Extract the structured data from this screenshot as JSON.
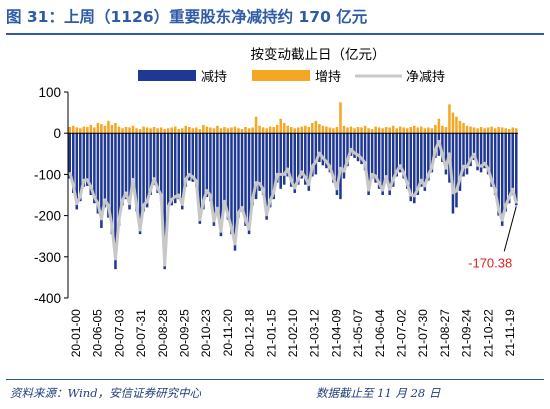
{
  "figure": {
    "title": "图 31：上周（1126）重要股东净减持约 170 亿元",
    "source": "资料来源：Wind，安信证券研究中心",
    "cutoff": "数据截止至 11 月 28 日"
  },
  "colors": {
    "title": "#2e5aa8",
    "reduce": "#1f3893",
    "increase": "#f5a623",
    "net": "#c8c8c8",
    "annotation": "#e02020",
    "axis": "#000000"
  },
  "chart_data": {
    "type": "bar",
    "subtitle": "按变动截止日（亿元）",
    "legend_position": "top-right",
    "ylim": [
      -400,
      100
    ],
    "yticks": [
      100,
      0,
      -100,
      -200,
      -300,
      -400
    ],
    "xtick_labels": [
      "20-01-00",
      "20-06-05",
      "20-07-03",
      "20-07-31",
      "20-08-28",
      "20-09-25",
      "20-10-23",
      "20-11-20",
      "20-12-18",
      "21-01-15",
      "21-02-10",
      "21-03-12",
      "21-04-09",
      "21-05-07",
      "21-06-04",
      "21-07-02",
      "21-07-30",
      "21-08-27",
      "21-09-24",
      "21-10-22",
      "21-11-19"
    ],
    "series": [
      {
        "name": "减持",
        "type": "bar",
        "values": [
          -110,
          -145,
          -185,
          -165,
          -130,
          -128,
          -150,
          -170,
          -195,
          -230,
          -180,
          -205,
          -245,
          -330,
          -225,
          -175,
          -160,
          -185,
          -130,
          -190,
          -245,
          -190,
          -180,
          -150,
          -125,
          -145,
          -165,
          -330,
          -190,
          -175,
          -170,
          -160,
          -185,
          -130,
          -115,
          -118,
          -130,
          -220,
          -185,
          -155,
          -165,
          -225,
          -200,
          -250,
          -180,
          -210,
          -245,
          -285,
          -205,
          -190,
          -225,
          -245,
          -175,
          -160,
          -140,
          -150,
          -210,
          -180,
          -160,
          -120,
          -135,
          -125,
          -105,
          -130,
          -145,
          -125,
          -110,
          -125,
          -140,
          -105,
          -100,
          -70,
          -78,
          -85,
          -95,
          -120,
          -150,
          -160,
          -110,
          -80,
          -55,
          -60,
          -68,
          -75,
          -90,
          -150,
          -110,
          -120,
          -135,
          -150,
          -120,
          -150,
          -130,
          -105,
          -95,
          -110,
          -135,
          -165,
          -170,
          -150,
          -130,
          -140,
          -115,
          -95,
          -60,
          -55,
          -70,
          -100,
          -120,
          -195,
          -180,
          -140,
          -105,
          -100,
          -80,
          -65,
          -90,
          -95,
          -85,
          -100,
          -130,
          -150,
          -200,
          -225,
          -190,
          -170,
          -150,
          -175
        ]
      },
      {
        "name": "增持",
        "type": "bar",
        "values": [
          15,
          18,
          14,
          12,
          16,
          15,
          20,
          14,
          25,
          22,
          18,
          30,
          20,
          25,
          16,
          12,
          15,
          14,
          18,
          12,
          10,
          16,
          14,
          12,
          15,
          12,
          14,
          10,
          12,
          14,
          16,
          10,
          12,
          18,
          15,
          12,
          14,
          10,
          20,
          16,
          14,
          12,
          18,
          12,
          15,
          12,
          14,
          16,
          12,
          10,
          15,
          12,
          14,
          40,
          18,
          14,
          12,
          16,
          15,
          20,
          35,
          25,
          18,
          15,
          12,
          14,
          16,
          18,
          15,
          25,
          30,
          22,
          18,
          16,
          14,
          12,
          15,
          75,
          18,
          14,
          16,
          12,
          15,
          14,
          18,
          12,
          10,
          16,
          14,
          12,
          15,
          14,
          18,
          12,
          16,
          14,
          12,
          15,
          18,
          14,
          16,
          12,
          14,
          12,
          20,
          35,
          18,
          15,
          70,
          50,
          40,
          30,
          25,
          18,
          16,
          14,
          12,
          15,
          12,
          14,
          16,
          12,
          15,
          14,
          12,
          10,
          14,
          12
        ]
      },
      {
        "name": "净减持",
        "type": "line",
        "values": [
          -95,
          -127,
          -171,
          -153,
          -114,
          -113,
          -130,
          -156,
          -170,
          -208,
          -162,
          -175,
          -225,
          -305,
          -209,
          -163,
          -145,
          -171,
          -112,
          -178,
          -235,
          -174,
          -166,
          -138,
          -110,
          -133,
          -151,
          -320,
          -178,
          -161,
          -154,
          -150,
          -173,
          -112,
          -100,
          -106,
          -116,
          -210,
          -165,
          -139,
          -151,
          -213,
          -182,
          -238,
          -165,
          -198,
          -231,
          -269,
          -193,
          -180,
          -210,
          -233,
          -161,
          -120,
          -122,
          -136,
          -198,
          -164,
          -145,
          -100,
          -100,
          -100,
          -87,
          -115,
          -133,
          -111,
          -94,
          -107,
          -125,
          -80,
          -70,
          -48,
          -60,
          -69,
          -81,
          -108,
          -135,
          -85,
          -92,
          -66,
          -39,
          -48,
          -53,
          -61,
          -72,
          -138,
          -100,
          -104,
          -121,
          -138,
          -105,
          -136,
          -112,
          -93,
          -79,
          -96,
          -123,
          -150,
          -152,
          -136,
          -114,
          -128,
          -101,
          -83,
          -40,
          -20,
          -52,
          -85,
          -50,
          -145,
          -140,
          -110,
          -80,
          -82,
          -64,
          -51,
          -78,
          -80,
          -73,
          -86,
          -114,
          -138,
          -185,
          -211,
          -175,
          -156,
          -136,
          -170.38
        ]
      }
    ],
    "annotation": {
      "text": "-170.38",
      "index": 127
    }
  }
}
